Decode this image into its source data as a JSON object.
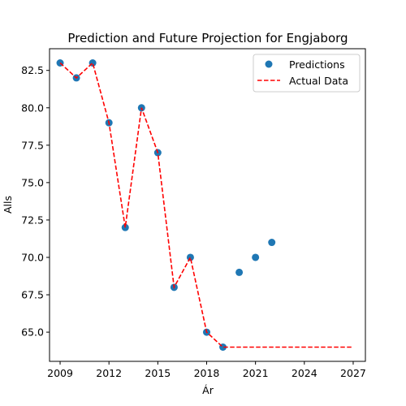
{
  "chart_data": {
    "type": "scatter",
    "title": "Prediction and Future Projection for Engjaborg",
    "xlabel": "Ár",
    "ylabel": "Alls",
    "xlim": [
      2008.35,
      2027.75
    ],
    "ylim": [
      63.05,
      83.95
    ],
    "x_ticks": [
      2009,
      2012,
      2015,
      2018,
      2021,
      2024,
      2027
    ],
    "y_ticks": [
      65.0,
      67.5,
      70.0,
      72.5,
      75.0,
      77.5,
      80.0,
      82.5
    ],
    "x_tick_labels": [
      "2009",
      "2012",
      "2015",
      "2018",
      "2021",
      "2024",
      "2027"
    ],
    "y_tick_labels": [
      "65.0",
      "67.5",
      "70.0",
      "72.5",
      "75.0",
      "77.5",
      "80.0",
      "82.5"
    ],
    "legend_position": "top-right",
    "grid": false,
    "series": [
      {
        "name": "Predictions",
        "kind": "scatter",
        "color": "#1f77b4",
        "x": [
          2009,
          2010,
          2011,
          2012,
          2013,
          2014,
          2015,
          2016,
          2017,
          2018,
          2019,
          2020,
          2021,
          2022
        ],
        "y": [
          83,
          82,
          83,
          79,
          72,
          80,
          77,
          68,
          70,
          65,
          64,
          69,
          70,
          71
        ]
      },
      {
        "name": "Actual Data",
        "kind": "line",
        "style": "dashed",
        "color": "#ff0000",
        "x": [
          2009,
          2010,
          2011,
          2012,
          2013,
          2014,
          2015,
          2016,
          2017,
          2018,
          2019,
          2020,
          2021,
          2022,
          2023,
          2024,
          2025,
          2026,
          2027
        ],
        "y": [
          83,
          82,
          83,
          79,
          72,
          80,
          77,
          68,
          70,
          65,
          64,
          64,
          64,
          64,
          64,
          64,
          64,
          64,
          64
        ]
      }
    ]
  }
}
